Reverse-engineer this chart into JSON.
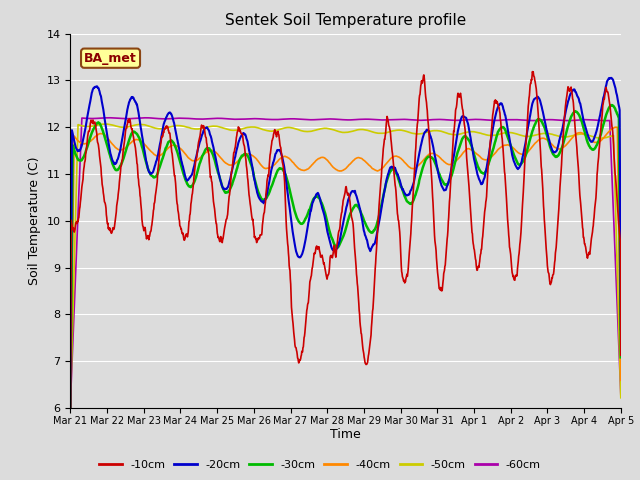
{
  "title": "Sentek Soil Temperature profile",
  "xlabel": "Time",
  "ylabel": "Soil Temperature (C)",
  "annotation": "BA_met",
  "ylim": [
    6.0,
    14.0
  ],
  "yticks": [
    6.0,
    7.0,
    8.0,
    9.0,
    10.0,
    11.0,
    12.0,
    13.0,
    14.0
  ],
  "xtick_labels": [
    "Mar 21",
    "Mar 22",
    "Mar 23",
    "Mar 24",
    "Mar 25",
    "Mar 26",
    "Mar 27",
    "Mar 28",
    "Mar 29",
    "Mar 30",
    "Mar 31",
    "Apr 1",
    "Apr 2",
    "Apr 3",
    "Apr 4",
    "Apr 5"
  ],
  "background_color": "#dcdcdc",
  "plot_bg_color": "#dcdcdc",
  "line_colors": {
    "-10cm": "#cc0000",
    "-20cm": "#0000cc",
    "-30cm": "#00bb00",
    "-40cm": "#ff8800",
    "-50cm": "#cccc00",
    "-60cm": "#aa00aa"
  },
  "line_widths": {
    "-10cm": 1.2,
    "-20cm": 1.5,
    "-30cm": 1.8,
    "-40cm": 1.2,
    "-50cm": 1.2,
    "-60cm": 1.2
  }
}
